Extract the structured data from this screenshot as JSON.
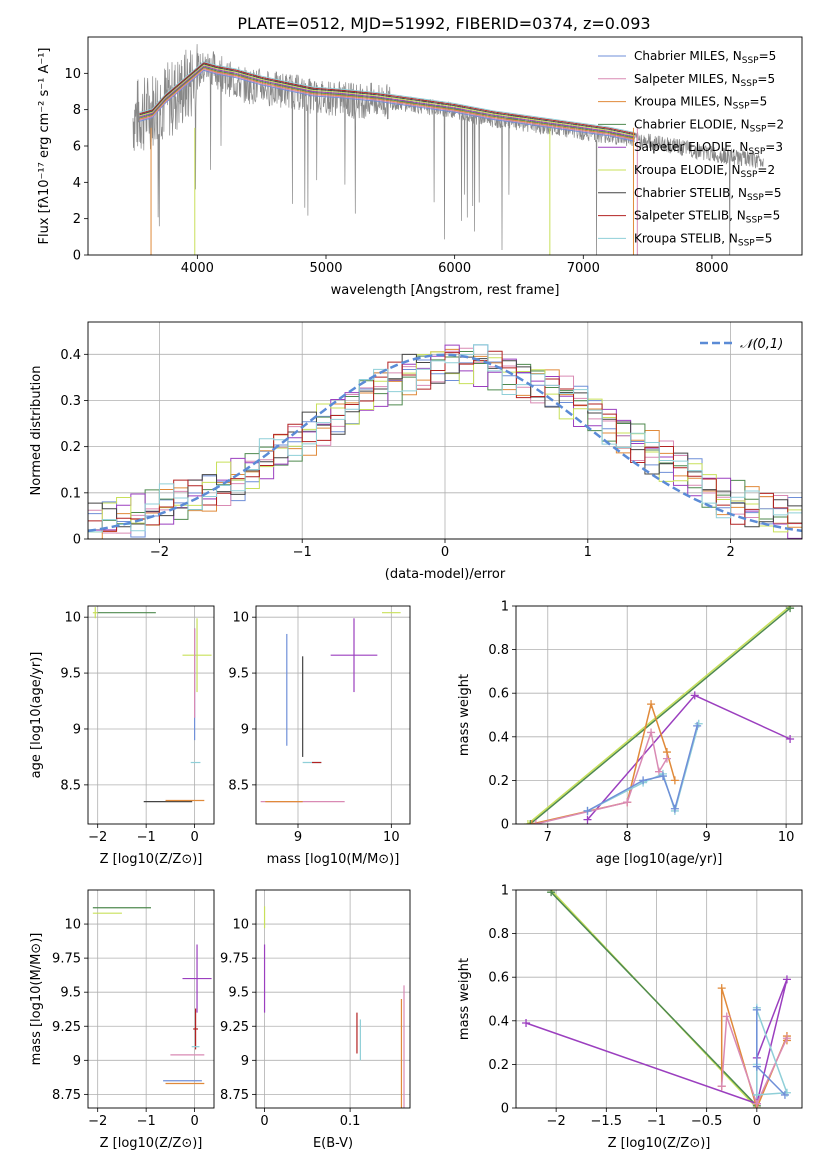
{
  "figure_title": "PLATE=0512, MJD=51992, FIBERID=0374, z=0.093",
  "series_styles": [
    {
      "name": "Chabrier MILES",
      "nssp": "5",
      "color": "#6f8fd8"
    },
    {
      "name": "Salpeter MILES",
      "nssp": "5",
      "color": "#d98ab4"
    },
    {
      "name": "Kroupa MILES",
      "nssp": "5",
      "color": "#e08a3a"
    },
    {
      "name": "Chabrier ELODIE",
      "nssp": "2",
      "color": "#4f8a4f"
    },
    {
      "name": "Salpeter ELODIE",
      "nssp": "3",
      "color": "#9b3fbf"
    },
    {
      "name": "Kroupa ELODIE",
      "nssp": "2",
      "color": "#c8e05a"
    },
    {
      "name": "Chabrier STELIB",
      "nssp": "5",
      "color": "#444444"
    },
    {
      "name": "Salpeter STELIB",
      "nssp": "5",
      "color": "#b22222"
    },
    {
      "name": "Kroupa STELIB",
      "nssp": "5",
      "color": "#8fcfd8"
    }
  ],
  "chart_data": [
    {
      "id": "spectrum",
      "type": "line",
      "title": "PLATE=0512, MJD=51992, FIBERID=0374, z=0.093",
      "xlabel": "wavelength [Angstrom, rest frame]",
      "ylabel": "Flux [fλ10⁻¹⁷ erg cm⁻² s⁻¹ A⁻¹]",
      "xlim": [
        3150,
        8700
      ],
      "ylim": [
        0,
        12
      ],
      "xticks": [
        4000,
        5000,
        6000,
        7000,
        8000
      ],
      "yticks": [
        0,
        2,
        4,
        6,
        8,
        10
      ],
      "grid": false,
      "legend_position": "right",
      "data_color": "#888888",
      "data_x": [
        3500,
        3600,
        3700,
        3800,
        3900,
        4000,
        4100,
        4200,
        4300,
        4400,
        4500,
        4600,
        4700,
        4800,
        4900,
        5000,
        5200,
        5400,
        5600,
        5800,
        6000,
        6200,
        6400,
        6600,
        6800,
        7000,
        7200,
        7400,
        7600,
        7800,
        8000,
        8200,
        8400
      ],
      "data_y": [
        7.8,
        8.0,
        8.6,
        8.8,
        9.4,
        10.2,
        10.5,
        10.0,
        9.6,
        9.4,
        9.4,
        9.2,
        9.2,
        9.0,
        8.8,
        8.8,
        8.6,
        8.6,
        8.4,
        8.2,
        8.0,
        7.6,
        7.4,
        7.2,
        7.0,
        6.8,
        6.6,
        6.4,
        6.2,
        5.9,
        5.6,
        5.4,
        5.2
      ],
      "model_x": [
        3550,
        3650,
        3750,
        3850,
        3950,
        4050,
        4150,
        4300,
        4500,
        4700,
        4900,
        5100,
        5400,
        5700,
        6000,
        6300,
        6600,
        6900,
        7200,
        7400
      ],
      "model_y": [
        7.6,
        7.8,
        8.6,
        9.2,
        9.8,
        10.4,
        10.2,
        10.0,
        9.6,
        9.3,
        9.0,
        8.9,
        8.7,
        8.4,
        8.1,
        7.7,
        7.4,
        7.1,
        6.8,
        6.5
      ]
    },
    {
      "id": "residuals",
      "type": "histogram",
      "xlabel": "(data-model)/error",
      "ylabel": "Normed distribution",
      "xlim": [
        -2.5,
        2.5
      ],
      "ylim": [
        0,
        0.47
      ],
      "xticks": [
        -2,
        -1,
        0,
        1,
        2
      ],
      "yticks": [
        0.0,
        0.1,
        0.2,
        0.3,
        0.4
      ],
      "grid": true,
      "legend": "𝒩(0,1)",
      "gauss_color": "#5b8bd6",
      "bin_start": -2.5,
      "bin_width": 0.1,
      "base": [
        0.03,
        0.04,
        0.05,
        0.05,
        0.06,
        0.07,
        0.08,
        0.09,
        0.1,
        0.12,
        0.13,
        0.15,
        0.17,
        0.19,
        0.21,
        0.23,
        0.25,
        0.27,
        0.29,
        0.31,
        0.33,
        0.34,
        0.36,
        0.37,
        0.38,
        0.39,
        0.38,
        0.38,
        0.37,
        0.36,
        0.35,
        0.34,
        0.33,
        0.31,
        0.29,
        0.27,
        0.25,
        0.23,
        0.21,
        0.19,
        0.17,
        0.15,
        0.13,
        0.11,
        0.09,
        0.08,
        0.07,
        0.06,
        0.05,
        0.04
      ]
    },
    {
      "id": "age-vs-Z",
      "type": "scatter",
      "xlabel": "Z [log10(Z/Z⊙)]",
      "ylabel": "age [log10(age/yr)]",
      "xlim": [
        -2.2,
        0.4
      ],
      "ylim": [
        8.15,
        10.1
      ],
      "xticks": [
        -2,
        -1,
        0
      ],
      "yticks": [
        8.5,
        9.0,
        9.5,
        10.0
      ],
      "grid": true,
      "points": [
        {
          "s": 5,
          "x": 0.05,
          "y": 9.66,
          "xerr": 0.3,
          "yerr": 0.33
        },
        {
          "s": 5,
          "x": -2.05,
          "y": 10.04,
          "xerr": 0.05,
          "yerr": 0.05
        },
        {
          "s": 3,
          "x": -1.4,
          "y": 10.04,
          "xerr": 0.6,
          "yerr": 0.0
        },
        {
          "s": 6,
          "x": -0.55,
          "y": 8.35,
          "xerr": 0.5,
          "yerr": 0.0
        },
        {
          "s": 2,
          "x": -0.2,
          "y": 8.36,
          "xerr": 0.4,
          "yerr": 0.0
        },
        {
          "s": 0,
          "x": 0.0,
          "y": 9.4,
          "xerr": 0.0,
          "yerr": 0.5
        },
        {
          "s": 1,
          "x": 0.0,
          "y": 9.5,
          "xerr": 0.0,
          "yerr": 0.4
        },
        {
          "s": 8,
          "x": 0.02,
          "y": 8.7,
          "xerr": 0.1,
          "yerr": 0.0
        }
      ]
    },
    {
      "id": "age-vs-mass",
      "type": "scatter",
      "xlabel": "mass [log10(M/M⊙)]",
      "ylabel": "",
      "xlim": [
        8.55,
        10.2
      ],
      "ylim": [
        8.15,
        10.1
      ],
      "xticks": [
        9,
        10
      ],
      "yticks": [
        8.5,
        9.0,
        9.5,
        10.0
      ],
      "grid": true,
      "points": [
        {
          "s": 4,
          "x": 9.6,
          "y": 9.66,
          "xerr": 0.25,
          "yerr": 0.33
        },
        {
          "s": 5,
          "x": 10.0,
          "y": 10.04,
          "xerr": 0.1,
          "yerr": 0.0
        },
        {
          "s": 1,
          "x": 9.05,
          "y": 8.35,
          "xerr": 0.45,
          "yerr": 0.0
        },
        {
          "s": 2,
          "x": 8.85,
          "y": 8.35,
          "xerr": 0.2,
          "yerr": 0.0
        },
        {
          "s": 0,
          "x": 8.88,
          "y": 9.35,
          "xerr": 0.0,
          "yerr": 0.5
        },
        {
          "s": 6,
          "x": 9.05,
          "y": 9.2,
          "xerr": 0.0,
          "yerr": 0.45
        },
        {
          "s": 8,
          "x": 9.15,
          "y": 8.7,
          "xerr": 0.1,
          "yerr": 0.0
        },
        {
          "s": 7,
          "x": 9.2,
          "y": 8.7,
          "xerr": 0.05,
          "yerr": 0.0
        }
      ]
    },
    {
      "id": "weight-vs-age",
      "type": "line",
      "xlabel": "age [log10(age/yr)]",
      "ylabel": "mass weight",
      "xlim": [
        6.6,
        10.2
      ],
      "ylim": [
        0,
        1.0
      ],
      "xticks": [
        7,
        8,
        9,
        10
      ],
      "yticks": [
        0.0,
        0.2,
        0.4,
        0.6,
        0.8,
        1.0
      ],
      "grid": true,
      "lines": [
        {
          "s": 5,
          "x": [
            6.75,
            10.05
          ],
          "y": [
            0.0,
            1.0
          ]
        },
        {
          "s": 3,
          "x": [
            6.78,
            10.05
          ],
          "y": [
            0.0,
            0.99
          ]
        },
        {
          "s": 4,
          "x": [
            7.5,
            8.85,
            10.05
          ],
          "y": [
            0.02,
            0.59,
            0.39
          ]
        },
        {
          "s": 2,
          "x": [
            6.8,
            8.0,
            8.3,
            8.5,
            8.6
          ],
          "y": [
            0.0,
            0.1,
            0.55,
            0.33,
            0.2
          ]
        },
        {
          "s": 1,
          "x": [
            6.85,
            8.0,
            8.3,
            8.4,
            8.5
          ],
          "y": [
            0.0,
            0.1,
            0.42,
            0.24,
            0.3
          ]
        },
        {
          "s": 8,
          "x": [
            7.5,
            8.2,
            8.45,
            8.6,
            8.9
          ],
          "y": [
            0.06,
            0.19,
            0.23,
            0.06,
            0.46
          ]
        },
        {
          "s": 0,
          "x": [
            7.5,
            8.2,
            8.45,
            8.6,
            8.88
          ],
          "y": [
            0.06,
            0.2,
            0.22,
            0.07,
            0.45
          ]
        }
      ]
    },
    {
      "id": "mass-vs-Z",
      "type": "scatter",
      "xlabel": "Z [log10(Z/Z⊙)]",
      "ylabel": "mass [log10(M/M⊙)]",
      "xlim": [
        -2.2,
        0.4
      ],
      "ylim": [
        8.65,
        10.25
      ],
      "xticks": [
        -2,
        -1,
        0
      ],
      "yticks": [
        8.75,
        9.0,
        9.25,
        9.5,
        9.75,
        10.0
      ],
      "grid": true,
      "points": [
        {
          "s": 4,
          "x": 0.05,
          "y": 9.6,
          "xerr": 0.3,
          "yerr": 0.25
        },
        {
          "s": 3,
          "x": -1.5,
          "y": 10.12,
          "xerr": 0.6,
          "yerr": 0.0
        },
        {
          "s": 5,
          "x": -1.8,
          "y": 10.08,
          "xerr": 0.3,
          "yerr": 0.0
        },
        {
          "s": 0,
          "x": -0.25,
          "y": 8.85,
          "xerr": 0.4,
          "yerr": 0.0
        },
        {
          "s": 2,
          "x": -0.2,
          "y": 8.83,
          "xerr": 0.4,
          "yerr": 0.0
        },
        {
          "s": 1,
          "x": -0.15,
          "y": 9.04,
          "xerr": 0.35,
          "yerr": 0.0
        },
        {
          "s": 7,
          "x": 0.02,
          "y": 9.23,
          "xerr": 0.05,
          "yerr": 0.15
        },
        {
          "s": 8,
          "x": 0.02,
          "y": 9.1,
          "xerr": 0.08,
          "yerr": 0.0
        }
      ]
    },
    {
      "id": "mass-vs-EBV",
      "type": "scatter",
      "xlabel": "E(B-V)",
      "ylabel": "",
      "xlim": [
        -0.01,
        0.17
      ],
      "ylim": [
        8.65,
        10.25
      ],
      "xticks": [
        0.0,
        0.1
      ],
      "yticks": [
        8.75,
        9.0,
        9.25,
        9.5,
        9.75,
        10.0
      ],
      "grid": true,
      "points": [
        {
          "s": 4,
          "x": 0.0,
          "y": 9.6,
          "xerr": 0.0,
          "yerr": 0.25
        },
        {
          "s": 5,
          "x": 0.0,
          "y": 10.05,
          "xerr": 0.0,
          "yerr": 0.08
        },
        {
          "s": 7,
          "x": 0.108,
          "y": 9.2,
          "xerr": 0.0,
          "yerr": 0.15
        },
        {
          "s": 8,
          "x": 0.112,
          "y": 9.15,
          "xerr": 0.0,
          "yerr": 0.15
        },
        {
          "s": 1,
          "x": 0.163,
          "y": 9.1,
          "xerr": 0.0,
          "yerr": 0.45
        },
        {
          "s": 2,
          "x": 0.16,
          "y": 9.05,
          "xerr": 0.0,
          "yerr": 0.4
        }
      ]
    },
    {
      "id": "weight-vs-Z",
      "type": "line",
      "xlabel": "Z [log10(Z/Z⊙)]",
      "ylabel": "mass weight",
      "xlim": [
        -2.4,
        0.45
      ],
      "ylim": [
        0,
        1.0
      ],
      "xticks": [
        -2.0,
        -1.5,
        -1.0,
        -0.5,
        0.0
      ],
      "yticks": [
        0.0,
        0.2,
        0.4,
        0.6,
        0.8,
        1.0
      ],
      "grid": true,
      "lines": [
        {
          "s": 5,
          "x": [
            -2.05,
            0.0
          ],
          "y": [
            1.0,
            0.0
          ]
        },
        {
          "s": 3,
          "x": [
            -2.05,
            0.0
          ],
          "y": [
            0.99,
            0.01
          ]
        },
        {
          "s": 4,
          "x": [
            -2.3,
            0.0,
            0.3,
            0.0,
            0.0
          ],
          "y": [
            0.39,
            0.02,
            0.59,
            0.23,
            0.02
          ]
        },
        {
          "s": 2,
          "x": [
            -0.35,
            -0.35,
            0.0,
            0.3,
            0.3
          ],
          "y": [
            0.1,
            0.55,
            0.0,
            0.33,
            0.31
          ]
        },
        {
          "s": 1,
          "x": [
            -0.35,
            -0.3,
            0.0,
            0.3
          ],
          "y": [
            0.1,
            0.42,
            0.02,
            0.32
          ]
        },
        {
          "s": 8,
          "x": [
            0.0,
            0.0,
            0.3,
            0.0,
            0.0
          ],
          "y": [
            0.46,
            0.06,
            0.07,
            0.45,
            0.2
          ]
        },
        {
          "s": 0,
          "x": [
            0.0,
            0.0,
            0.28
          ],
          "y": [
            0.45,
            0.19,
            0.06
          ]
        }
      ]
    }
  ]
}
